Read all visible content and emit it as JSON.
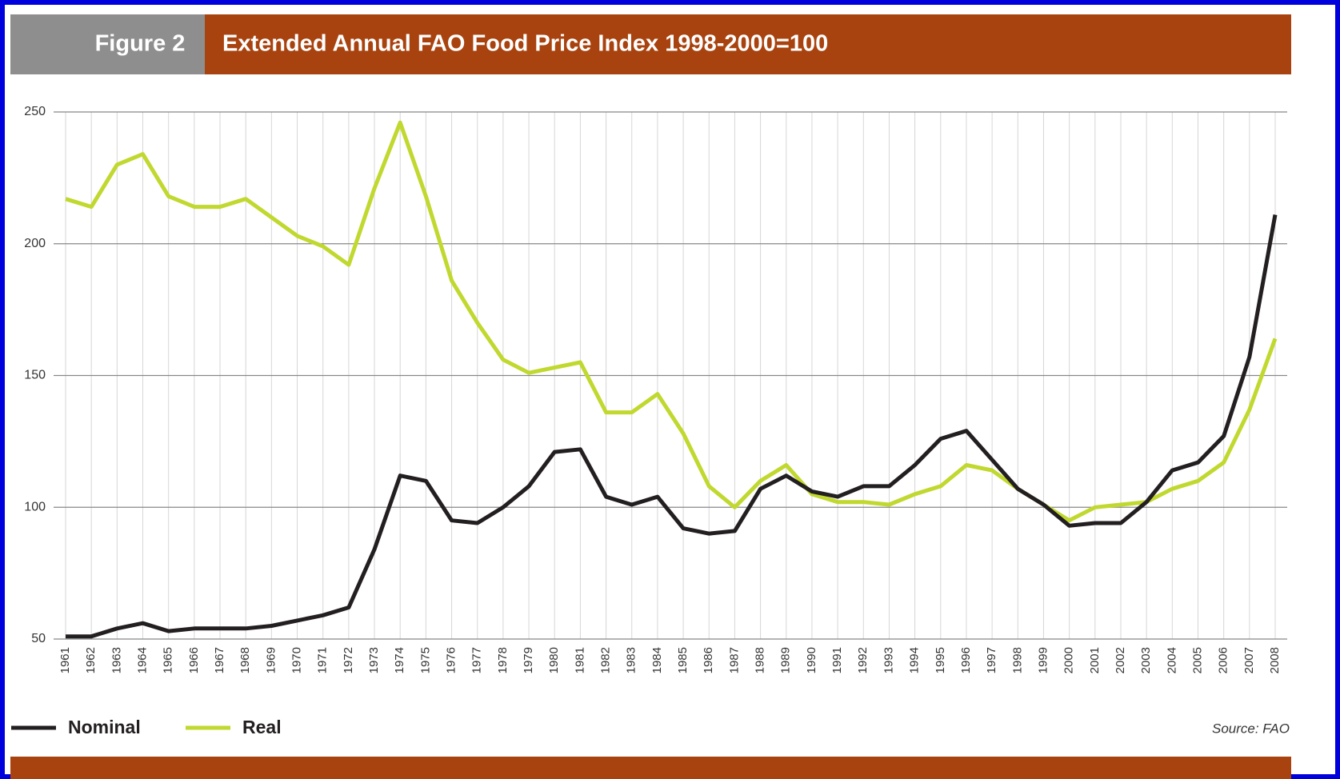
{
  "header": {
    "figure": "Figure 2"
  },
  "chart_data": {
    "type": "line",
    "title": "Extended Annual FAO Food Price Index 1998-2000=100",
    "categories": [
      "1961",
      "1962",
      "1963",
      "1964",
      "1965",
      "1966",
      "1967",
      "1968",
      "1969",
      "1970",
      "1971",
      "1972",
      "1973",
      "1974",
      "1975",
      "1976",
      "1977",
      "1978",
      "1979",
      "1980",
      "1981",
      "1982",
      "1983",
      "1984",
      "1985",
      "1986",
      "1987",
      "1988",
      "1989",
      "1990",
      "1991",
      "1992",
      "1993",
      "1994",
      "1995",
      "1996",
      "1997",
      "1998",
      "1999",
      "2000",
      "2001",
      "2002",
      "2003",
      "2004",
      "2005",
      "2006",
      "2007",
      "2008"
    ],
    "series": [
      {
        "name": "Nominal",
        "color": "#231f20",
        "values": [
          51,
          51,
          54,
          56,
          53,
          54,
          54,
          54,
          55,
          57,
          59,
          62,
          84,
          112,
          110,
          95,
          94,
          100,
          108,
          121,
          122,
          104,
          101,
          104,
          92,
          90,
          91,
          107,
          112,
          106,
          104,
          108,
          108,
          116,
          126,
          129,
          118,
          107,
          101,
          93,
          94,
          94,
          102,
          114,
          117,
          127,
          157,
          211
        ]
      },
      {
        "name": "Real",
        "color": "#c1d82f",
        "values": [
          217,
          214,
          230,
          234,
          218,
          214,
          214,
          217,
          210,
          203,
          199,
          192,
          221,
          246,
          218,
          186,
          170,
          156,
          151,
          153,
          155,
          136,
          136,
          143,
          128,
          108,
          100,
          110,
          116,
          105,
          102,
          102,
          101,
          105,
          108,
          116,
          114,
          107,
          101,
          95,
          100,
          101,
          102,
          107,
          110,
          117,
          137,
          164
        ]
      }
    ],
    "ylim": [
      50,
      250
    ],
    "yticks": [
      50,
      100,
      150,
      200,
      250
    ],
    "grid": true,
    "source": "Source: FAO"
  }
}
